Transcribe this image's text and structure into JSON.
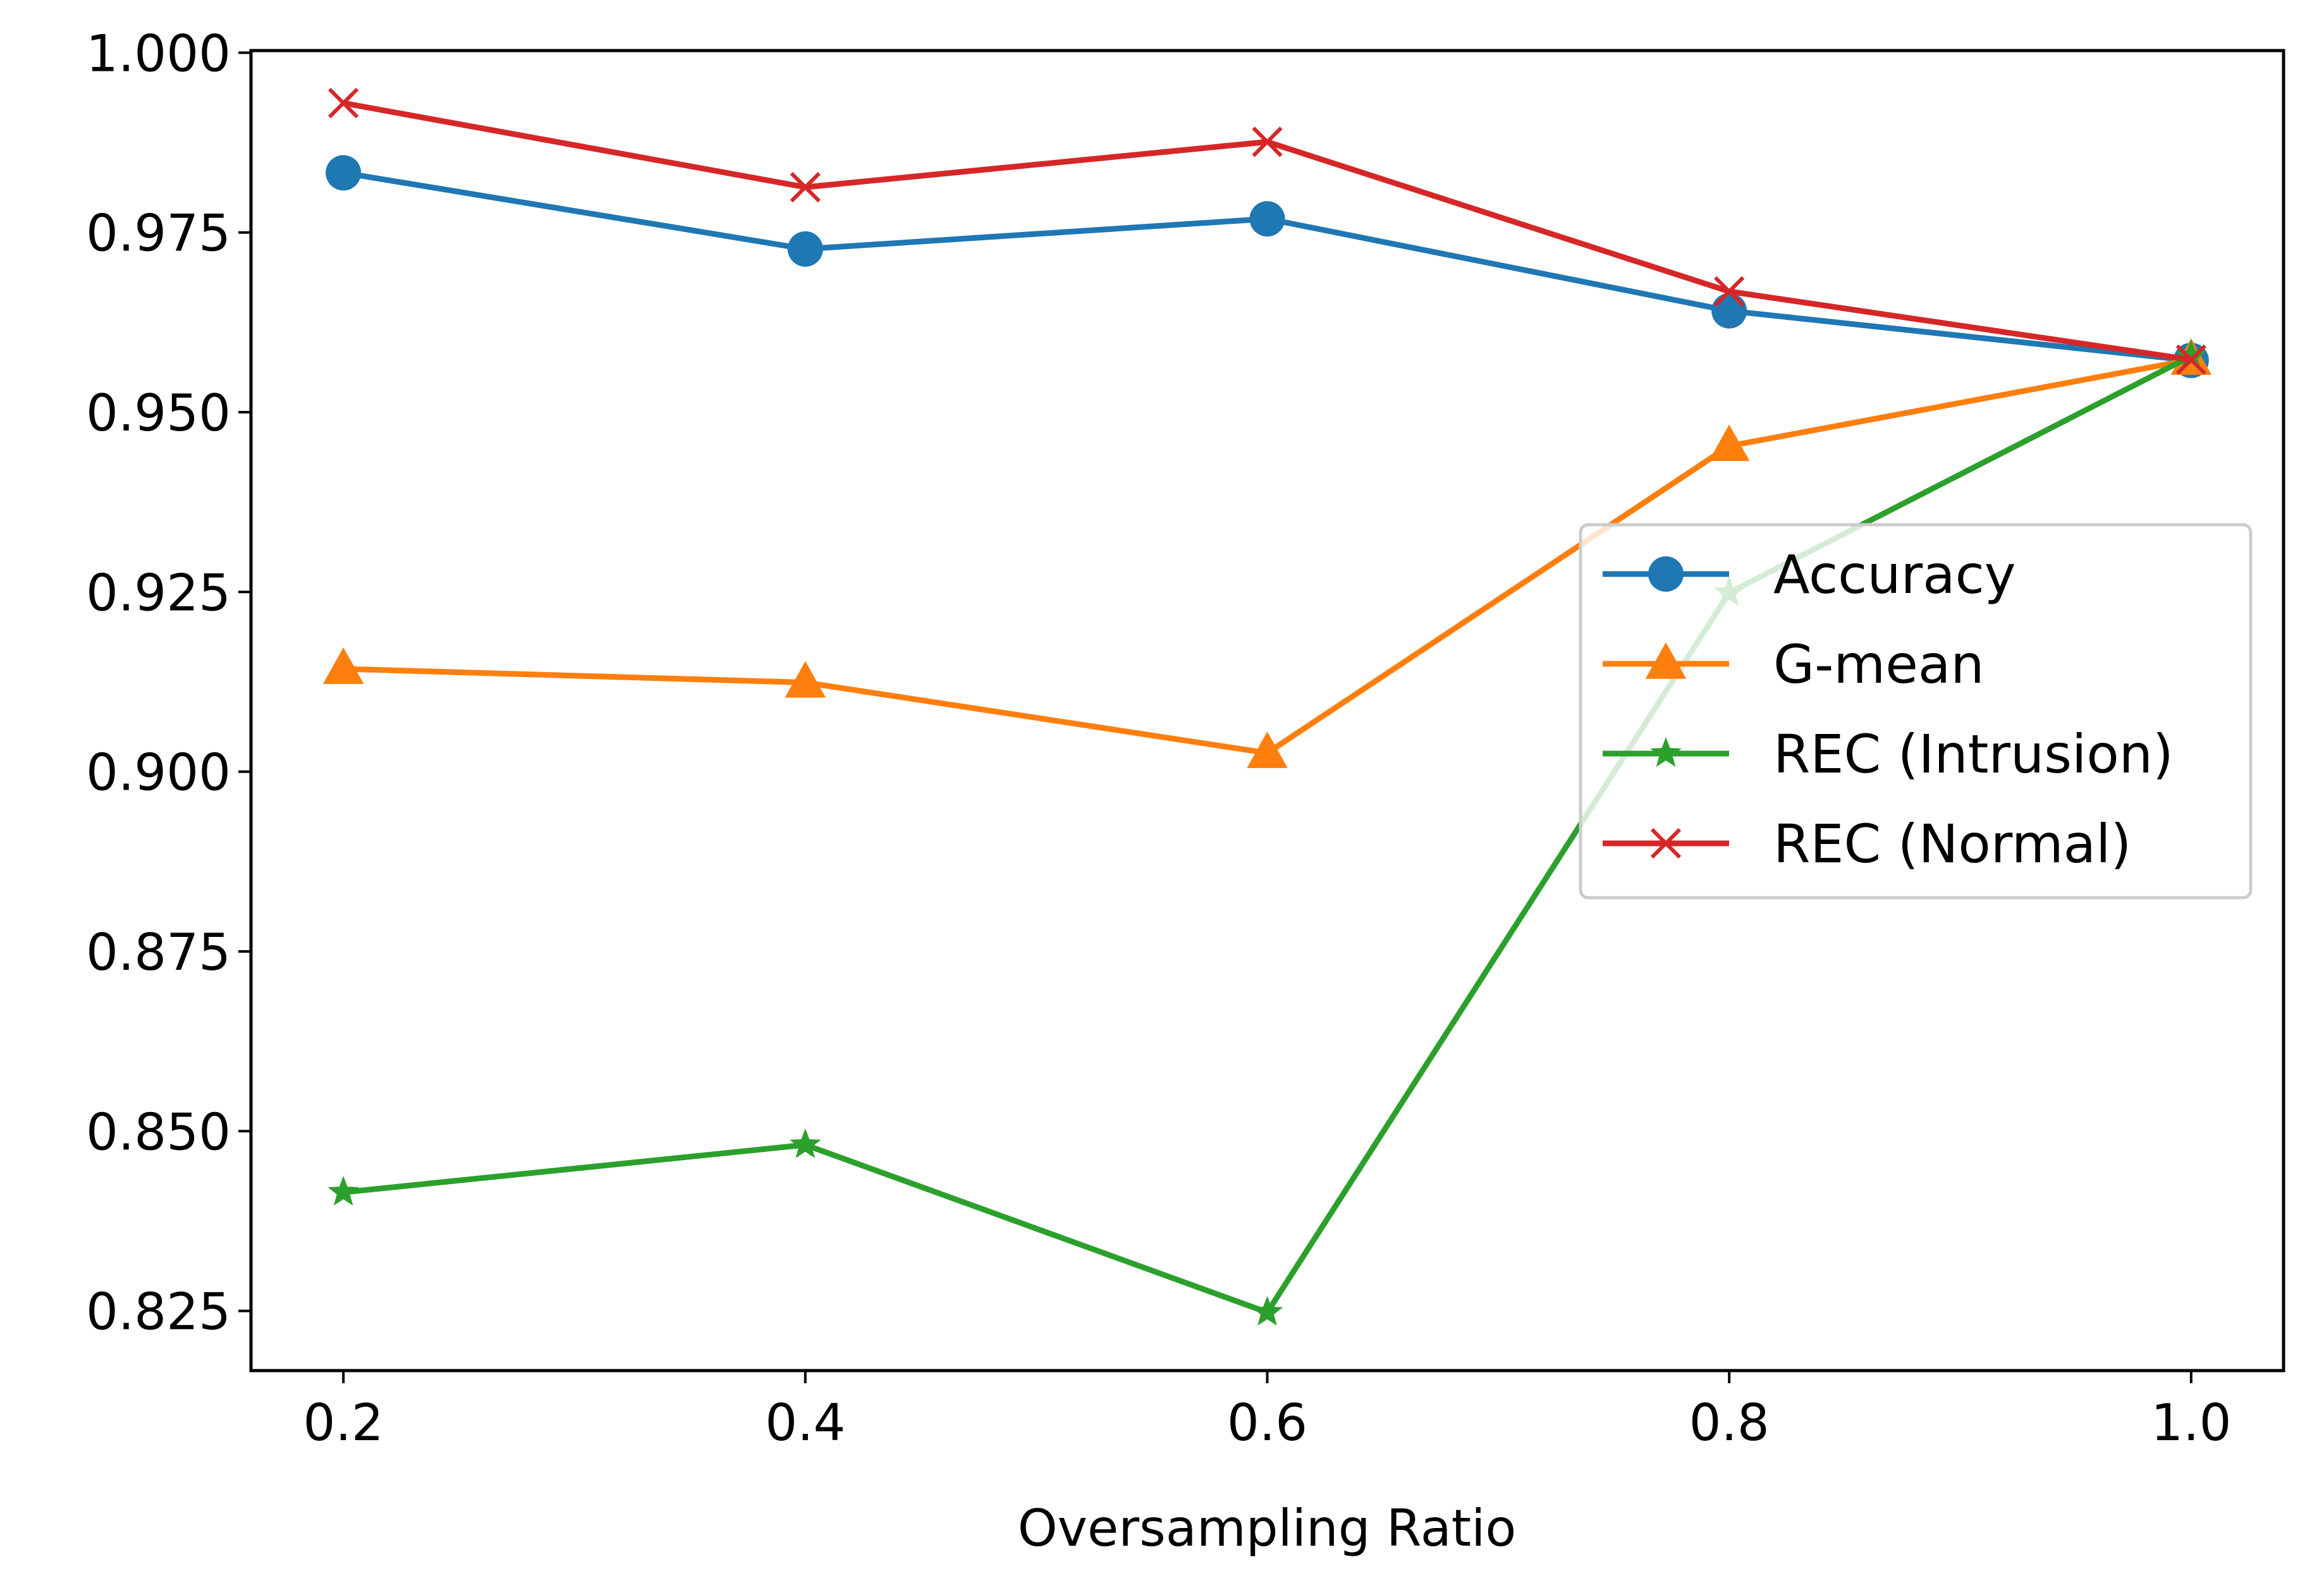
{
  "chart_data": {
    "type": "line",
    "title": "",
    "xlabel": "Oversampling Ratio",
    "ylabel": "",
    "x": [
      0.2,
      0.4,
      0.6,
      0.8,
      1.0
    ],
    "xticks": [
      "0.2",
      "0.4",
      "0.6",
      "0.8",
      "1.0"
    ],
    "yticks": [
      "0.825",
      "0.850",
      "0.875",
      "0.900",
      "0.925",
      "0.950",
      "0.975",
      "1.000"
    ],
    "xlim": [
      0.16,
      1.04
    ],
    "ylim": [
      0.8167,
      1.0003
    ],
    "grid": false,
    "legend_position": "center-right",
    "series": [
      {
        "name": "Accuracy",
        "marker": "circle",
        "color": "#1f77b4",
        "values": [
          0.9833,
          0.9727,
          0.9769,
          0.9641,
          0.9572
        ]
      },
      {
        "name": "G-mean",
        "marker": "triangle",
        "color": "#ff7f0e",
        "values": [
          0.9143,
          0.9124,
          0.9026,
          0.9453,
          0.9573
        ]
      },
      {
        "name": "REC (Intrusion)",
        "marker": "star",
        "color": "#2ca02c",
        "values": [
          0.8415,
          0.8481,
          0.8248,
          0.9249,
          0.9578
        ]
      },
      {
        "name": "REC (Normal)",
        "marker": "x",
        "color": "#d62728",
        "values": [
          0.993,
          0.9813,
          0.9876,
          0.9668,
          0.9573
        ]
      }
    ]
  }
}
